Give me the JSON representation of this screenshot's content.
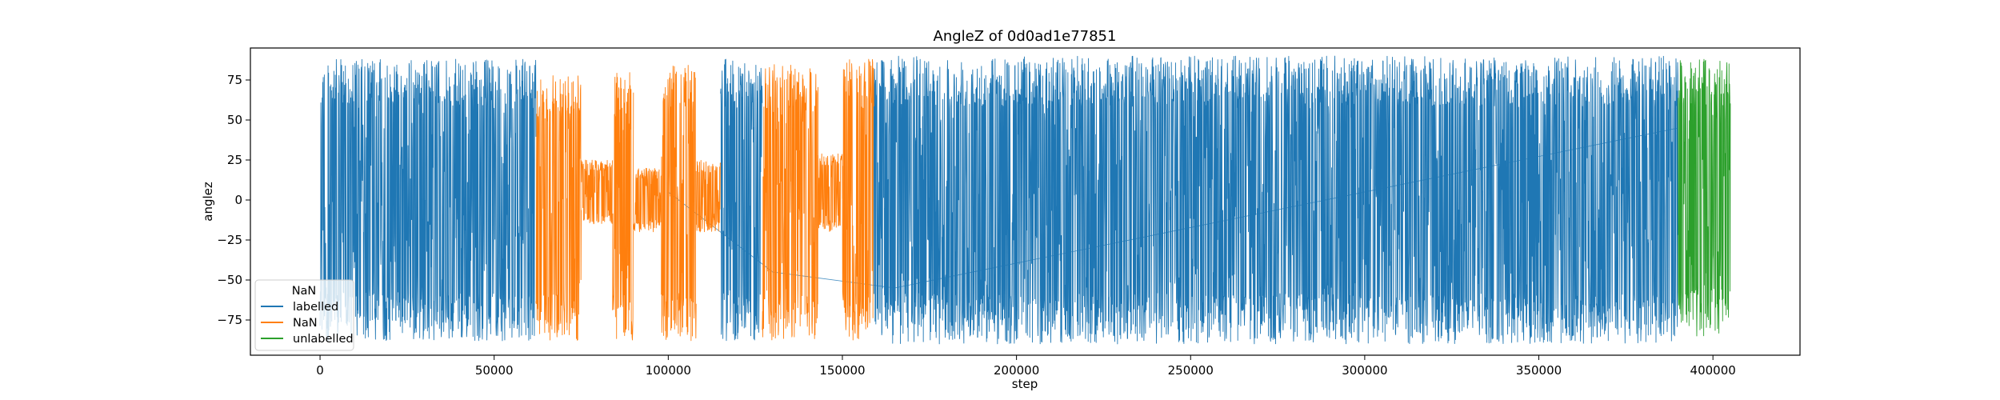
{
  "chart_data": {
    "type": "line",
    "title": "AngleZ of 0d0ad1e77851",
    "xlabel": "step",
    "ylabel": "anglez",
    "xlim": [
      -20000,
      425000
    ],
    "ylim": [
      -97,
      95
    ],
    "xticks": [
      0,
      50000,
      100000,
      150000,
      200000,
      250000,
      300000,
      350000,
      400000
    ],
    "yticks": [
      -75,
      -50,
      -25,
      0,
      25,
      50,
      75
    ],
    "grid": false,
    "legend": {
      "title": "NaN",
      "position": "lower-left",
      "entries": [
        {
          "label": "labelled",
          "color": "#1f77b4"
        },
        {
          "label": "NaN",
          "color": "#ff7f0e"
        },
        {
          "label": "unlabelled",
          "color": "#2ca02c"
        }
      ]
    },
    "series": [
      {
        "name": "labelled",
        "color": "#1f77b4",
        "segments": [
          {
            "x": [
              0,
              62000
            ],
            "y_range": [
              -88,
              88
            ]
          },
          {
            "x": [
              115000,
              127000
            ],
            "y_range": [
              -88,
              88
            ]
          },
          {
            "x": [
              159000,
              390000
            ],
            "y_range": [
              -90,
              90
            ]
          }
        ],
        "connector": {
          "x": [
            100000,
            130000,
            165000,
            390000
          ],
          "y": [
            5,
            -45,
            -55,
            45
          ]
        }
      },
      {
        "name": "NaN",
        "color": "#ff7f0e",
        "segments": [
          {
            "x": [
              62000,
              75000
            ],
            "y_range": [
              -88,
              78
            ]
          },
          {
            "x": [
              75000,
              84000
            ],
            "y_range": [
              -15,
              25
            ]
          },
          {
            "x": [
              84000,
              90000
            ],
            "y_range": [
              -88,
              80
            ]
          },
          {
            "x": [
              90000,
              98000
            ],
            "y_range": [
              -20,
              20
            ]
          },
          {
            "x": [
              98000,
              108000
            ],
            "y_range": [
              -88,
              85
            ]
          },
          {
            "x": [
              108000,
              115000
            ],
            "y_range": [
              -20,
              25
            ]
          },
          {
            "x": [
              127000,
              143000
            ],
            "y_range": [
              -88,
              85
            ]
          },
          {
            "x": [
              143000,
              150000
            ],
            "y_range": [
              -20,
              30
            ]
          },
          {
            "x": [
              150000,
              159000
            ],
            "y_range": [
              -88,
              88
            ]
          }
        ]
      },
      {
        "name": "unlabelled",
        "color": "#2ca02c",
        "segments": [
          {
            "x": [
              390000,
              405000
            ],
            "y_range": [
              -85,
              88
            ]
          }
        ]
      }
    ]
  }
}
